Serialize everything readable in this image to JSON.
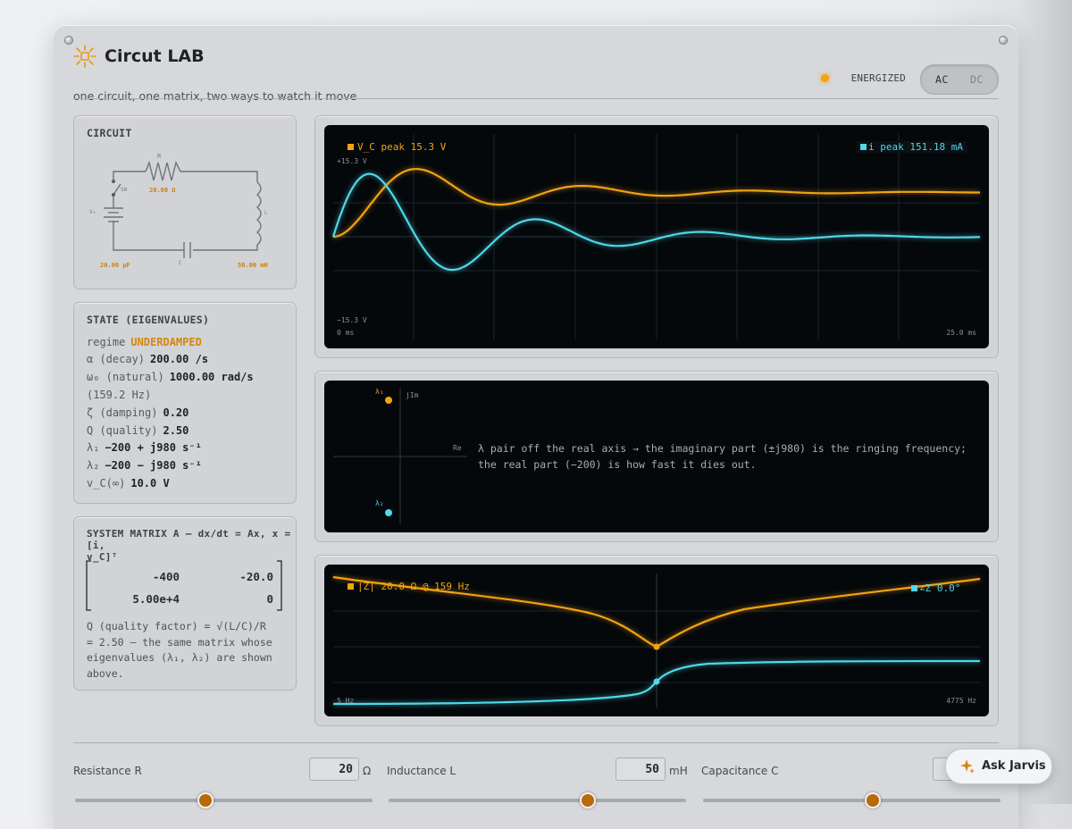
{
  "app": {
    "title": "Circut LAB",
    "subtitle": "one circuit, one matrix, two ways to watch it move",
    "status": "ENERGIZED",
    "modes": [
      "AC",
      "DC"
    ],
    "accent": "#f3a312",
    "cyan": "#4fd8e8"
  },
  "circuit": {
    "heading": "CIRCUIT",
    "labels": {
      "r": "R",
      "r_value": "20.00 Ω",
      "sw": "SW",
      "v0": "V₀",
      "l": "L",
      "c": "C",
      "c_value": "20.00 µF",
      "l_value": "50.00 mH"
    }
  },
  "state": {
    "heading": "STATE (EIGENVALUES)",
    "rows": [
      {
        "key": "regime",
        "value": "UNDERDAMPED"
      },
      {
        "key": "α (decay)",
        "value": "200.00 /s"
      },
      {
        "key": "ω₀ (natural)",
        "value": "1000.00 rad/s"
      },
      {
        "key": "(159.2 Hz)",
        "value": ""
      },
      {
        "key": "ζ (damping)",
        "value": "0.20"
      },
      {
        "key": "Q (quality)",
        "value": "2.50"
      },
      {
        "key": "λ₁",
        "value": "−200 + j980 s⁻¹"
      },
      {
        "key": "λ₂",
        "value": "−200 − j980 s⁻¹"
      },
      {
        "key": "v_C(∞)",
        "value": "10.0 V"
      }
    ]
  },
  "matrix": {
    "heading_line1": "SYSTEM MATRIX A — dx/dt = Ax, x = [i,",
    "heading_line2": "v_C]ᵀ",
    "cells": [
      "-400",
      "-20.0",
      "5.00e+4",
      "0"
    ],
    "note_lines": [
      "Q (quality factor) = √(L/C)/R",
      "= 2.50 — the same matrix whose",
      "eigenvalues (λ₁, λ₂) are shown",
      "above."
    ]
  },
  "transient": {
    "vc_label": "V_C peak 15.3 V",
    "i_label": "i peak 151.18 mA",
    "y_top": "+15.3 V",
    "y_bottom": "−15.3 V",
    "x_start": "0 ms",
    "x_end": "25.0 ms"
  },
  "poles": {
    "l1": "λ₁",
    "l2": "λ₂",
    "im_axis": "jIm",
    "re_axis": "Re",
    "note_line1": "λ pair off the real axis → the imaginary part (±j980) is the ringing frequency;",
    "note_line2": "the real part (−200) is how fast it dies out."
  },
  "bode": {
    "z_label": "|Z| 20.0 Ω @ 159 Hz",
    "phase_label": "∠Z 0.0°",
    "x_start": "5 Hz",
    "x_end": "4775 Hz"
  },
  "controls": [
    {
      "label": "Resistance R",
      "value": "20",
      "unit": "Ω",
      "level": 0.44
    },
    {
      "label": "Inductance L",
      "value": "50",
      "unit": "mH",
      "level": 0.67
    },
    {
      "label": "Capacitance C",
      "value": "",
      "unit": "",
      "level": 0.57
    }
  ],
  "assistant": {
    "label": "Ask Jarvis"
  }
}
